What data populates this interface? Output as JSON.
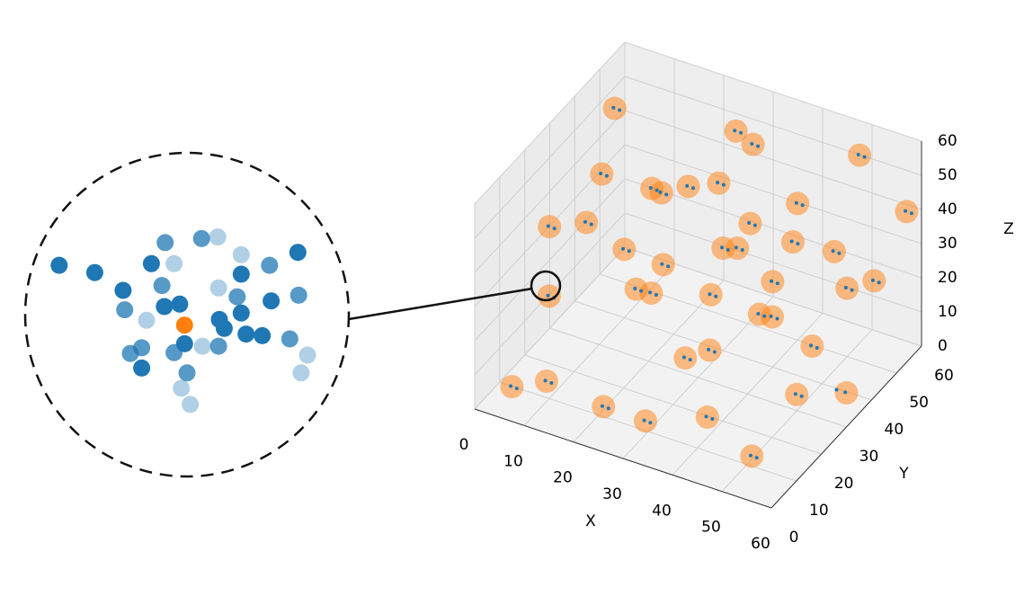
{
  "chart_data": [
    {
      "type": "scatter3d",
      "xlabel": "X",
      "ylabel": "Y",
      "zlabel": "Z",
      "xlim": [
        0,
        60
      ],
      "ylim": [
        0,
        60
      ],
      "zlim": [
        0,
        60
      ],
      "xticks": [
        0,
        10,
        20,
        30,
        40,
        50,
        60
      ],
      "yticks": [
        0,
        10,
        20,
        30,
        40,
        50,
        60
      ],
      "zticks": [
        0,
        10,
        20,
        30,
        40,
        50,
        60
      ],
      "grid": true,
      "series": [
        {
          "color": "#ff7f0e",
          "alpha": 0.5,
          "x": [
            5,
            8,
            3,
            10,
            15,
            20,
            25,
            30,
            35,
            40,
            45,
            50,
            55,
            58,
            12,
            22,
            32,
            42,
            52,
            5,
            18,
            28,
            38,
            48,
            58,
            8,
            25,
            35,
            45,
            55,
            15,
            28,
            42,
            50,
            20,
            32,
            10,
            40,
            50,
            60
          ],
          "y": [
            20,
            35,
            50,
            10,
            45,
            25,
            55,
            40,
            15,
            50,
            30,
            55,
            20,
            45,
            5,
            8,
            5,
            10,
            8,
            5,
            35,
            20,
            35,
            40,
            58,
            55,
            45,
            58,
            5,
            35,
            15,
            30,
            22,
            15,
            58,
            48,
            40,
            40,
            50,
            30
          ],
          "z": [
            40,
            45,
            50,
            30,
            35,
            25,
            50,
            30,
            20,
            40,
            25,
            55,
            15,
            30,
            10,
            5,
            8,
            10,
            5,
            5,
            15,
            40,
            45,
            10,
            40,
            25,
            10,
            20,
            35,
            45,
            50,
            55,
            50,
            40,
            30,
            55,
            20,
            25,
            20,
            10
          ]
        },
        {
          "color": "#1f77b4",
          "alpha": 1,
          "x": [
            6.5,
            9.5,
            4.5,
            11.5,
            16.5,
            21.5,
            26.5,
            31.5,
            36.5,
            41.5,
            46.5,
            51.5,
            56.5,
            59.5,
            13.5,
            23.5,
            33.5,
            43.5,
            53.5,
            6.5,
            19.5,
            29.5,
            39.5,
            49.5,
            59.5,
            9.5,
            26.5,
            36.5,
            46.5,
            56.5,
            16.5,
            29.5,
            43.5,
            51.5,
            21.5,
            33.5,
            11.5,
            41.5,
            51.5,
            58.5
          ],
          "y": [
            19,
            34,
            49,
            9,
            44,
            24,
            54,
            39,
            14,
            49,
            29,
            54,
            19,
            44,
            4,
            7,
            4,
            9,
            7,
            4,
            34,
            19,
            34,
            39,
            57,
            54,
            44,
            57,
            4,
            34,
            14,
            29,
            21,
            14,
            57,
            47,
            39,
            39,
            49,
            29
          ],
          "z": [
            41,
            46,
            51,
            31,
            36,
            26,
            51,
            31,
            21,
            41,
            26,
            56,
            16,
            31,
            11,
            6,
            9,
            11,
            6,
            6,
            16,
            41,
            46,
            11,
            41,
            26,
            11,
            21,
            36,
            46,
            51,
            56,
            51,
            41,
            31,
            56,
            21,
            26,
            21,
            11
          ]
        },
        {
          "color": "#1f77b4",
          "alpha": 1,
          "x": [
            4,
            7,
            2,
            9,
            14,
            19,
            24,
            29,
            34,
            39,
            44,
            49,
            54,
            57,
            11,
            21,
            31,
            41,
            51,
            4,
            17,
            27,
            37,
            47,
            57,
            7,
            24,
            34,
            44,
            54,
            14,
            27,
            41,
            49,
            19,
            31,
            9,
            39,
            49,
            59
          ],
          "y": [
            21.5,
            36.5,
            51.5,
            11.5,
            46.5,
            26.5,
            56.5,
            41.5,
            16.5,
            51.5,
            31.5,
            56.5,
            21.5,
            46.5,
            6.5,
            9.5,
            6.5,
            11.5,
            9.5,
            6.5,
            36.5,
            21.5,
            36.5,
            41.5,
            59.5,
            56.5,
            46.5,
            59.5,
            6.5,
            36.5,
            16.5,
            31.5,
            23.5,
            16.5,
            59.5,
            49.5,
            41.5,
            41.5,
            51.5,
            31.5
          ],
          "z": [
            38.5,
            43.5,
            48.5,
            28.5,
            33.5,
            23.5,
            48.5,
            28.5,
            18.5,
            38.5,
            23.5,
            53.5,
            13.5,
            28.5,
            8.5,
            3.5,
            6.5,
            8.5,
            3.5,
            3.5,
            13.5,
            38.5,
            43.5,
            8.5,
            38.5,
            23.5,
            8.5,
            18.5,
            33.5,
            43.5,
            48.5,
            53.5,
            48.5,
            38.5,
            28.5,
            53.5,
            18.5,
            23.5,
            18.5,
            8.5
          ]
        }
      ]
    },
    {
      "type": "scatter",
      "xlim": [
        -20,
        20
      ],
      "ylim": [
        -20,
        20
      ],
      "series": [
        {
          "color": "#1f77b4",
          "alpha": 1,
          "x": [
            -15.8,
            -11.4,
            -7.9,
            13.7,
            -4.4,
            -0.9,
            -2.8,
            6.7,
            10.4,
            6.7,
            4,
            4.6,
            7.3,
            9.3,
            -0.3,
            -5.6
          ],
          "y": [
            6.1,
            5.2,
            3.0,
            7.7,
            6.3,
            1.3,
            1.0,
            5,
            1.7,
            0.2,
            -0.6,
            -1.7,
            -2.4,
            -2.6,
            -3.6,
            -6.6
          ]
        },
        {
          "color": "#1f77b4",
          "alpha": 0.75,
          "x": [
            -7.7,
            -2.7,
            1.8,
            10.2,
            -3.1,
            6.2,
            13.8,
            12.7,
            -1.6,
            0,
            -5.6,
            -7,
            3.9
          ],
          "y": [
            0.6,
            8.9,
            9.4,
            6.1,
            3.6,
            2.2,
            2.4,
            -3,
            -4.7,
            -7.2,
            -4.1,
            -4.8,
            -3.9
          ]
        },
        {
          "color": "#1f77b4",
          "alpha": 0.35,
          "x": [
            -5,
            3.8,
            6.7,
            -1.6,
            3.9,
            14.9,
            14.1,
            -0.7,
            0.4,
            1.9
          ],
          "y": [
            -0.7,
            9.6,
            7.4,
            6.3,
            3.3,
            -5,
            -7.2,
            -9.1,
            -11.1,
            -3.9
          ]
        },
        {
          "color": "#ff7f0e",
          "alpha": 1,
          "x": [
            -0.3
          ],
          "y": [
            -1.3
          ]
        }
      ]
    }
  ]
}
